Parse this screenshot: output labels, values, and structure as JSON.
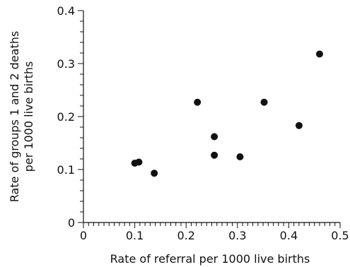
{
  "chart_data": {
    "type": "scatter",
    "title": "",
    "xlabel": "Rate of referral per 1000 live births",
    "ylabel_lines": [
      "Rate of groups 1 and 2 deaths",
      "per 1000 live births"
    ],
    "xlim": [
      0,
      0.5
    ],
    "ylim": [
      0,
      0.4
    ],
    "x_ticks": [
      {
        "value": 0,
        "label": "0"
      },
      {
        "value": 0.1,
        "label": "0.1"
      },
      {
        "value": 0.2,
        "label": "0.2"
      },
      {
        "value": 0.3,
        "label": "0.3"
      },
      {
        "value": 0.4,
        "label": "0.4"
      },
      {
        "value": 0.5,
        "label": "0.5"
      }
    ],
    "y_ticks": [
      {
        "value": 0,
        "label": "0"
      },
      {
        "value": 0.1,
        "label": "0.1"
      },
      {
        "value": 0.2,
        "label": "0.2"
      },
      {
        "value": 0.3,
        "label": "0.3"
      },
      {
        "value": 0.4,
        "label": "0.4"
      }
    ],
    "x_minor_step": 0.01,
    "y_minor_step": 0.02,
    "grid": false,
    "legend": "none",
    "points": [
      {
        "x": 0.1,
        "y": 0.112
      },
      {
        "x": 0.108,
        "y": 0.114
      },
      {
        "x": 0.138,
        "y": 0.093
      },
      {
        "x": 0.222,
        "y": 0.227
      },
      {
        "x": 0.255,
        "y": 0.162
      },
      {
        "x": 0.255,
        "y": 0.127
      },
      {
        "x": 0.305,
        "y": 0.124
      },
      {
        "x": 0.352,
        "y": 0.227
      },
      {
        "x": 0.42,
        "y": 0.183
      },
      {
        "x": 0.46,
        "y": 0.318
      }
    ],
    "colors": {
      "marker": "#111111",
      "axis": "#111111"
    }
  }
}
